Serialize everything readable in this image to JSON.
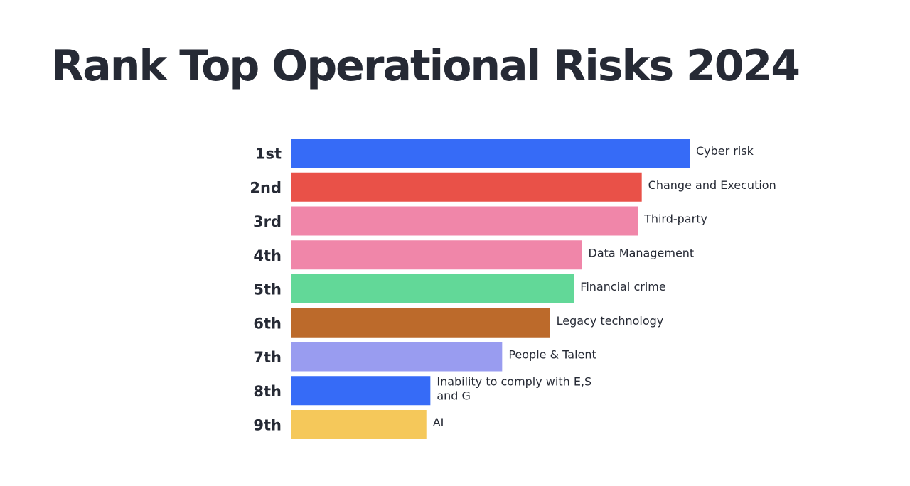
{
  "title": "Rank Top Operational Risks 2024",
  "chart_data": {
    "type": "bar",
    "orientation": "horizontal",
    "title": "Rank Top Operational Risks 2024",
    "categories": [
      "1st",
      "2nd",
      "3rd",
      "4th",
      "5th",
      "6th",
      "7th",
      "8th",
      "9th"
    ],
    "series": [
      {
        "labels": [
          [
            "Cyber risk"
          ],
          [
            "Change and Execution"
          ],
          [
            "Third-party"
          ],
          [
            "Data Management"
          ],
          [
            "Financial crime"
          ],
          [
            "Legacy technology"
          ],
          [
            "People & Talent"
          ],
          [
            "Inability to comply with E,S",
            "and G"
          ],
          [
            "AI"
          ]
        ],
        "values": [
          100,
          88,
          87,
          73,
          71,
          65,
          53,
          35,
          34
        ],
        "colors": [
          "#366bf7",
          "#e95148",
          "#f086a9",
          "#f086a9",
          "#62d898",
          "#bc6a2b",
          "#999cf0",
          "#366bf7",
          "#f5c85a"
        ]
      }
    ],
    "xlim": [
      0,
      100
    ],
    "grid": false,
    "legend": "none"
  }
}
